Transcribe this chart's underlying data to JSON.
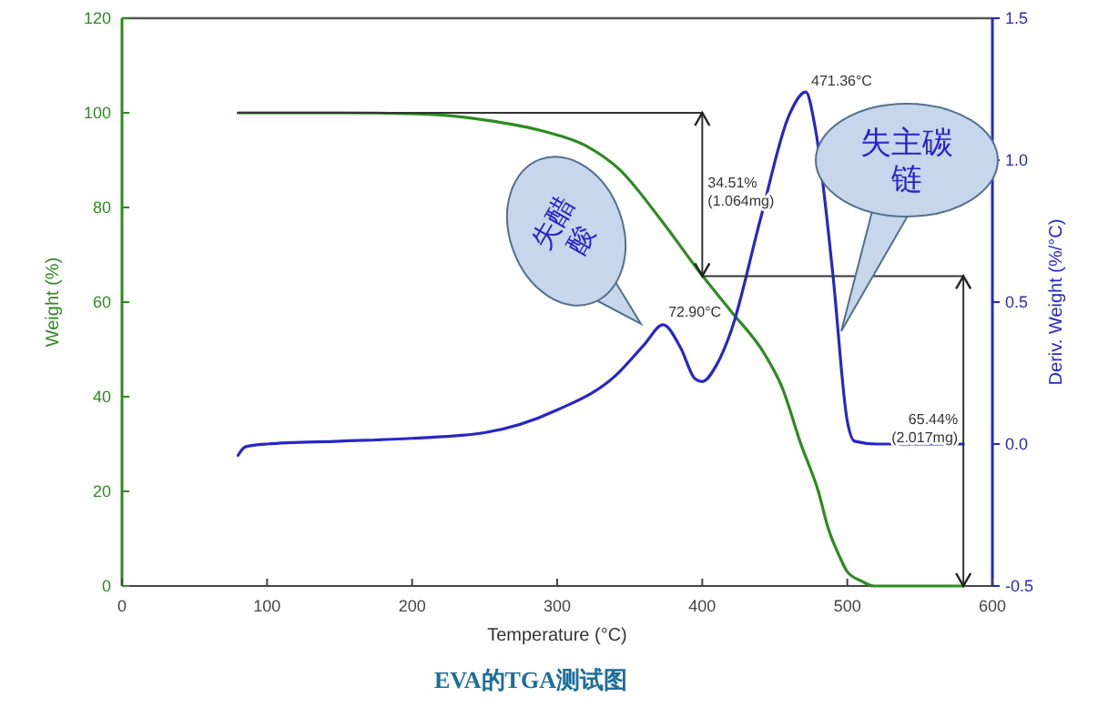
{
  "chart_data": {
    "type": "line",
    "title": "EVA的TGA测试图",
    "xlabel": "Temperature (°C)",
    "ylabel": "Weight (%)",
    "y2label": "Deriv. Weight (%/°C)",
    "xlim": [
      0,
      600
    ],
    "xticks": [
      0,
      100,
      200,
      300,
      400,
      500,
      600
    ],
    "ylim": [
      0,
      120
    ],
    "yticks": [
      0,
      20,
      40,
      60,
      80,
      100,
      120
    ],
    "y2lim": [
      -0.5,
      1.5
    ],
    "y2ticks": [
      {
        "value": -0.5,
        "label": "-0.5"
      },
      {
        "value": 0,
        "label": "0.0"
      },
      {
        "value": 0.5,
        "label": "0.5"
      },
      {
        "value": 1,
        "label": "1.0"
      },
      {
        "value": 1.5,
        "label": "1.5"
      }
    ],
    "series": [
      {
        "color": "#2e8b22",
        "x": [
          80,
          150,
          204,
          250,
          292,
          320,
          343,
          370,
          399,
          420,
          443,
          455,
          468,
          480,
          487,
          495,
          500,
          510,
          518,
          550,
          580
        ],
        "values": [
          100,
          100,
          99.8,
          98.5,
          96,
          93,
          88,
          78,
          66,
          58,
          49,
          42,
          30,
          20,
          12,
          6,
          3,
          1,
          0,
          0,
          0
        ]
      },
      {
        "color": "#2727c8",
        "axis": "y2",
        "x": [
          80,
          85,
          100,
          150,
          200,
          250,
          300,
          340,
          360,
          372.9,
          385,
          395,
          400,
          410,
          420,
          440,
          460,
          471.36,
          478,
          490,
          500,
          505,
          520,
          550,
          580
        ],
        "values": [
          -0.04,
          -0.01,
          0,
          0.01,
          0.02,
          0.04,
          0.12,
          0.24,
          0.35,
          0.42,
          0.34,
          0.23,
          0.22,
          0.28,
          0.4,
          0.79,
          1.16,
          1.24,
          1.11,
          0.6,
          0.08,
          0.01,
          0,
          0,
          0
        ]
      },
      {
        "color": "#333333",
        "type": "step",
        "x": [
          80,
          400,
          400,
          580,
          580
        ],
        "values": [
          100,
          100,
          65.5,
          65.5,
          0
        ]
      }
    ],
    "annotations": [
      "失醋酸",
      "失主碳链",
      {
        "text": "72.90°C",
        "x": 372.9,
        "y": 55.8
      },
      {
        "text": "471.36°C",
        "x": 471.36,
        "y": 104.6
      },
      {
        "text": "34.51% (1.064mg)",
        "x": 400,
        "y": 82.7
      },
      {
        "text": "65.44% (2.017mg)",
        "x": 580,
        "y": 32.7
      }
    ]
  }
}
